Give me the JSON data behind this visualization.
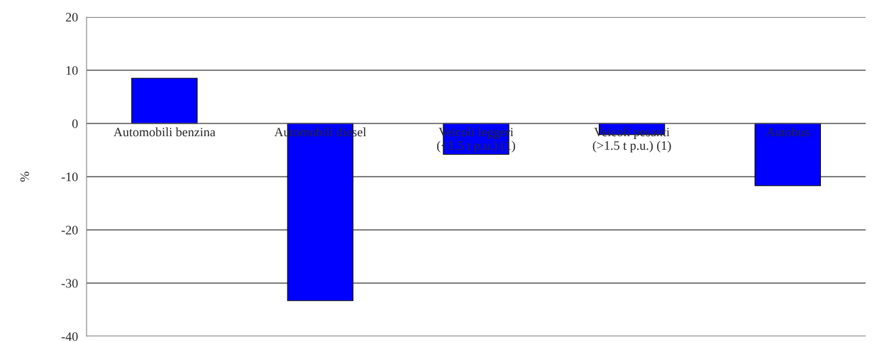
{
  "chart_data": {
    "type": "bar",
    "ylabel": "%",
    "categories": [
      "Automobili benzina",
      "Automobili diesel",
      "Veicoli leggeri\n(<1.5 t p.u.) (1)",
      "Veicoli pesanti\n(>1.5 t p.u.) (1)",
      "Autobus"
    ],
    "values": [
      8.5,
      -33.3,
      -5.8,
      -2.1,
      -11.7
    ],
    "color": "#0000ff",
    "ylim": [
      -40,
      20
    ],
    "yticks": [
      -40,
      -30,
      -20,
      -10,
      0,
      10,
      20
    ],
    "grid": "y"
  }
}
